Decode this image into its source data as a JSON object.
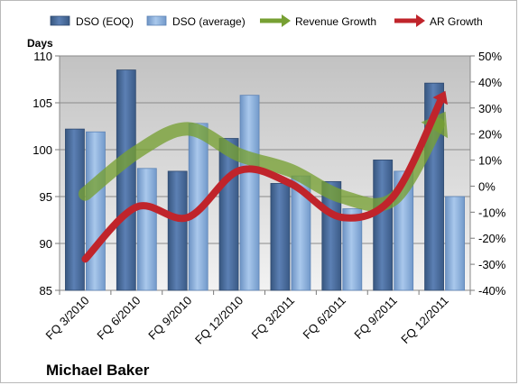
{
  "chart_data": {
    "type": "bar",
    "title": "",
    "company": "Michael Baker",
    "y_left_title": "Days",
    "ylim_left": [
      85,
      110
    ],
    "y_left_ticks": [
      85,
      90,
      95,
      100,
      105,
      110
    ],
    "ylim_right": [
      -40,
      50
    ],
    "y_right_ticks": [
      "-40%",
      "-30%",
      "-20%",
      "-10%",
      "0%",
      "10%",
      "20%",
      "30%",
      "40%",
      "50%"
    ],
    "y_right_tick_values": [
      -40,
      -30,
      -20,
      -10,
      0,
      10,
      20,
      30,
      40,
      50
    ],
    "categories": [
      "FQ 3/2010",
      "FQ 6/2010",
      "FQ 9/2010",
      "FQ 12/2010",
      "FQ 3/2011",
      "FQ 6/2011",
      "FQ 9/2011",
      "FQ 12/2011"
    ],
    "legend_position": "top",
    "grid": true,
    "series": [
      {
        "name": "DSO (EOQ)",
        "kind": "bar",
        "axis": "left",
        "color": "#4a6b9b",
        "values": [
          102.2,
          108.5,
          97.7,
          101.2,
          96.4,
          96.6,
          98.9,
          107.1
        ]
      },
      {
        "name": "DSO (average)",
        "kind": "bar",
        "axis": "left",
        "color": "#8db4e2",
        "values": [
          101.9,
          98.0,
          102.8,
          105.8,
          97.2,
          93.7,
          97.7,
          95.0
        ]
      },
      {
        "name": "Revenue Growth",
        "kind": "line",
        "axis": "right",
        "color": "#77a033",
        "values": [
          -3,
          13,
          22,
          12,
          6,
          -4,
          -5,
          28
        ]
      },
      {
        "name": "AR Growth",
        "kind": "line",
        "axis": "right",
        "color": "#c0242b",
        "values": [
          -28,
          -8,
          -12,
          6,
          1,
          -12,
          -4,
          36
        ]
      }
    ]
  }
}
